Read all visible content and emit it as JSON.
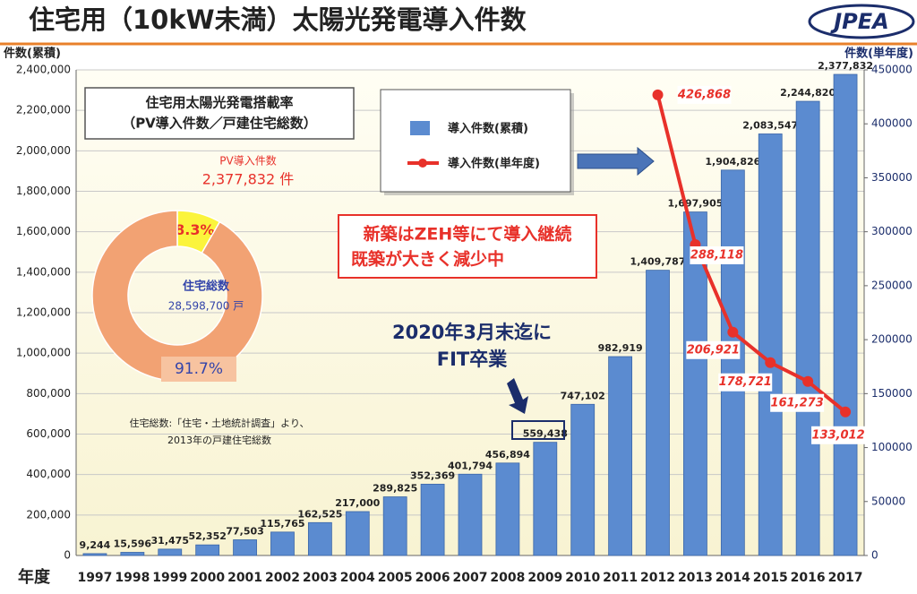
{
  "header": {
    "logo": "JPEA"
  },
  "chart_data": [
    {
      "type": "combo",
      "title": "住宅用（10kW未満）太陽光発電導入件数",
      "y_label": "件数(累積)",
      "y2_label": "件数(単年度)",
      "x_label": "年度",
      "categories": [
        "1997",
        "1998",
        "1999",
        "2000",
        "2001",
        "2002",
        "2003",
        "2004",
        "2005",
        "2006",
        "2007",
        "2008",
        "2009",
        "2010",
        "2011",
        "2012",
        "2013",
        "2014",
        "2015",
        "2016",
        "2017"
      ],
      "series": [
        {
          "name": "導入件数(累積)",
          "type": "bar",
          "color": "#5b8bd0",
          "values": [
            9244,
            15596,
            31475,
            52352,
            77503,
            115765,
            162525,
            217000,
            289825,
            352369,
            401794,
            456894,
            559438,
            747102,
            982919,
            1409787,
            1697905,
            1904826,
            2083547,
            2244820,
            2377832
          ],
          "value_labels": [
            "9,244",
            "15,596",
            "31,475",
            "52,352",
            "77,503",
            "115,765",
            "162,525",
            "217,000",
            "289,825",
            "352,369",
            "401,794",
            "456,894",
            "559,438",
            "747,102",
            "982,919",
            "1,409,787",
            "1,697,905",
            "1,904,826",
            "2,083,547",
            "2,244,820",
            "2,377,832"
          ]
        },
        {
          "name": "導入件数(単年度)",
          "type": "line",
          "axis": "y2",
          "color": "#e8312a",
          "values": [
            null,
            null,
            null,
            null,
            null,
            null,
            null,
            null,
            null,
            null,
            null,
            null,
            null,
            null,
            null,
            426868,
            288118,
            206921,
            178721,
            161273,
            133012
          ],
          "value_labels": [
            null,
            null,
            null,
            null,
            null,
            null,
            null,
            null,
            null,
            null,
            null,
            null,
            null,
            null,
            null,
            "426,868",
            "288,118",
            "206,921",
            "178,721",
            "161,273",
            "133,012"
          ]
        }
      ],
      "ylim": [
        0,
        2400000
      ],
      "yticks": [
        0,
        {
          "value": 200000,
          "label": "200,000"
        },
        {
          "value": 400000,
          "label": "400,000"
        },
        {
          "value": 600000,
          "label": "600,000"
        },
        {
          "value": 800000,
          "label": "800,000"
        },
        {
          "value": 1000000,
          "label": "1,000,000"
        },
        {
          "value": 1200000,
          "label": "1,200,000"
        },
        {
          "value": 1400000,
          "label": "1,400,000"
        },
        {
          "value": 1600000,
          "label": "1,600,000"
        },
        {
          "value": 1800000,
          "label": "1,800,000"
        },
        {
          "value": 2000000,
          "label": "2,000,000"
        },
        {
          "value": 2200000,
          "label": "2,200,000"
        },
        {
          "value": 2400000,
          "label": "2,400,000"
        }
      ],
      "y2lim": [
        0,
        450000
      ],
      "y2ticks": [
        0,
        50000,
        100000,
        150000,
        200000,
        250000,
        300000,
        350000,
        400000,
        450000
      ],
      "grid": true,
      "annotations": [
        "新築はZEH等にて導入継続",
        "既築が大きく減少中",
        "2020年3月末迄に",
        "FIT卒業"
      ]
    },
    {
      "type": "pie",
      "title": [
        "住宅用太陽光発電搭載率",
        "（PV導入件数／戸建住宅総数）"
      ],
      "pv_label": "PV導入件数",
      "pv_count": "2,377,832 件",
      "center_label": "住宅総数",
      "center_value": "28,598,700 戸",
      "values": [
        8.3,
        91.7
      ],
      "value_labels": [
        "8.3%",
        "91.7%"
      ],
      "colors": [
        "#fbf43c",
        "#f2a273"
      ],
      "notes": [
        "住宅総数:「住宅・土地統計調査」より、",
        "2013年の戸建住宅総数"
      ]
    }
  ]
}
